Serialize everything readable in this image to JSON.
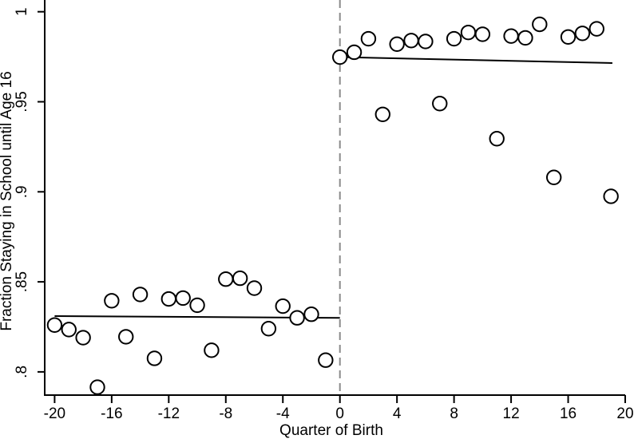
{
  "chart_data": {
    "type": "scatter",
    "title": "",
    "xlabel": "Quarter of Birth",
    "ylabel": "Fraction Staying in School until Age 16",
    "xlim": [
      -20.7,
      20
    ],
    "ylim": [
      0.787,
      1.007
    ],
    "grid": false,
    "legend": null,
    "xticks": [
      {
        "value": -20,
        "label": "-20"
      },
      {
        "value": -16,
        "label": "-16"
      },
      {
        "value": -12,
        "label": "-12"
      },
      {
        "value": -8,
        "label": "-8"
      },
      {
        "value": -4,
        "label": "-4"
      },
      {
        "value": 0,
        "label": "0"
      },
      {
        "value": 4,
        "label": "4"
      },
      {
        "value": 8,
        "label": "8"
      },
      {
        "value": 12,
        "label": "12"
      },
      {
        "value": 16,
        "label": "16"
      },
      {
        "value": 20,
        "label": "20"
      }
    ],
    "yticks": [
      {
        "value": 0.8,
        "label": ".8"
      },
      {
        "value": 0.85,
        "label": ".85"
      },
      {
        "value": 0.9,
        "label": ".9"
      },
      {
        "value": 0.95,
        "label": ".95"
      },
      {
        "value": 1,
        "label": "1"
      }
    ],
    "points": [
      [
        -20,
        0.826
      ],
      [
        -19,
        0.8235
      ],
      [
        -18,
        0.819
      ],
      [
        -17,
        0.7915
      ],
      [
        -16,
        0.8395
      ],
      [
        -15,
        0.8195
      ],
      [
        -14,
        0.843
      ],
      [
        -13,
        0.8075
      ],
      [
        -12,
        0.8405
      ],
      [
        -11,
        0.841
      ],
      [
        -10,
        0.837
      ],
      [
        -9,
        0.812
      ],
      [
        -8,
        0.8515
      ],
      [
        -7,
        0.852
      ],
      [
        -6,
        0.8465
      ],
      [
        -5,
        0.824
      ],
      [
        -4,
        0.8365
      ],
      [
        -3,
        0.83
      ],
      [
        -2,
        0.832
      ],
      [
        -1,
        0.8065
      ],
      [
        0,
        0.9748
      ],
      [
        1,
        0.9775
      ],
      [
        2,
        0.985
      ],
      [
        3,
        0.943
      ],
      [
        4,
        0.982
      ],
      [
        5,
        0.984
      ],
      [
        6,
        0.9835
      ],
      [
        7,
        0.949
      ],
      [
        8,
        0.985
      ],
      [
        9,
        0.9885
      ],
      [
        10,
        0.9875
      ],
      [
        11,
        0.9295
      ],
      [
        12,
        0.9865
      ],
      [
        13,
        0.9855
      ],
      [
        14,
        0.993
      ],
      [
        15,
        0.908
      ],
      [
        16,
        0.986
      ],
      [
        17,
        0.988
      ],
      [
        18,
        0.9905
      ],
      [
        19,
        0.8975
      ]
    ],
    "fit_lines": [
      {
        "name": "fit-line-pre-cutoff",
        "x1": -20,
        "y1": 0.831,
        "x2": 0,
        "y2": 0.83
      },
      {
        "name": "fit-line-post-cutoff",
        "x1": 0,
        "y1": 0.9748,
        "x2": 19.1,
        "y2": 0.9715
      }
    ],
    "reference_line": {
      "axis": "x",
      "value": 0,
      "style": "dashed",
      "color": "#8a8a8a"
    },
    "marker": {
      "shape": "hollow-circle",
      "fill": "#ffffff",
      "stroke": "#000000"
    },
    "colors": {
      "axis": "#000000",
      "fit_line": "#000000",
      "marker_stroke": "#000000",
      "cutoff": "#8a8a8a"
    }
  }
}
